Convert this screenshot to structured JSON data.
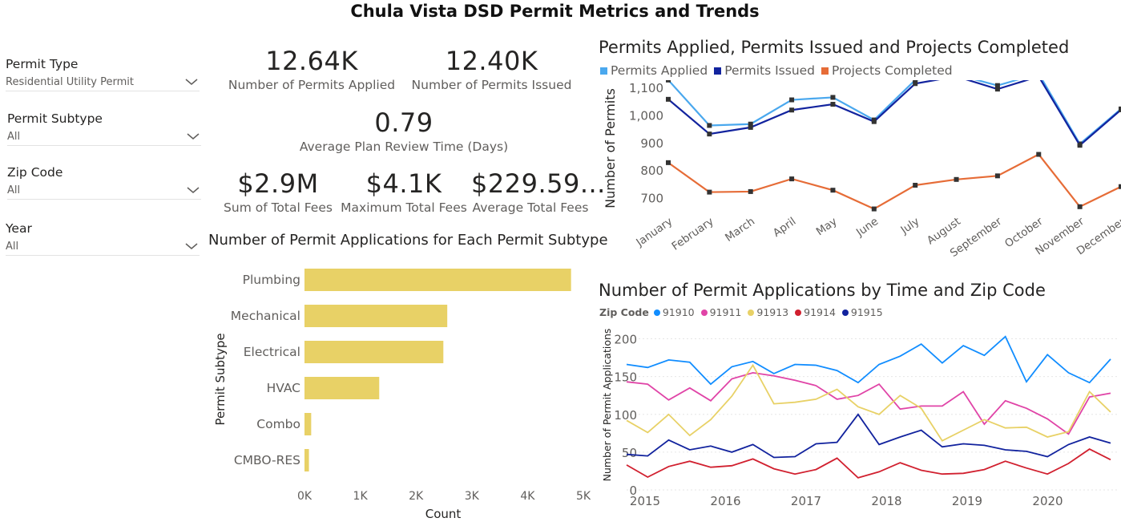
{
  "page": {
    "title": "Chula Vista DSD Permit Metrics and Trends"
  },
  "filters": [
    {
      "label": "Permit Type",
      "value": "Residential Utility Permit"
    },
    {
      "label": "Permit Subtype",
      "value": "All"
    },
    {
      "label": "Zip Code",
      "value": "All"
    },
    {
      "label": "Year",
      "value": "All"
    }
  ],
  "cards": {
    "permits_applied": {
      "value": "12.64K",
      "label": "Number of Permits Applied"
    },
    "permits_issued": {
      "value": "12.40K",
      "label": "Number of Permits Issued"
    },
    "review_time": {
      "value": "0.79",
      "label": "Average Plan Review Time (Days)"
    },
    "sum_fees": {
      "value": "$2.9M",
      "label": "Sum of Total Fees"
    },
    "max_fees": {
      "value": "$4.1K",
      "label": "Maximum Total Fees"
    },
    "avg_fees": {
      "value": "$229.59...",
      "label": "Average Total Fees"
    }
  },
  "colors": {
    "bar": "#E8D166",
    "applied": "#4AA8EE",
    "issued": "#12239E",
    "completed": "#E66C37",
    "z91910": "#118DFF",
    "z91911": "#E044A7",
    "z91913": "#E8D166",
    "z91914": "#D1202F",
    "z91915": "#12239E"
  },
  "chart_data": [
    {
      "type": "bar",
      "orientation": "horizontal",
      "title": "Number of Permit Applications for Each Permit Subtype",
      "xlabel": "Count",
      "ylabel": "Permit Subtype",
      "categories": [
        "Plumbing",
        "Mechanical",
        "Electrical",
        "HVAC",
        "Combo",
        "CMBO-RES"
      ],
      "values": [
        4780,
        2560,
        2490,
        1340,
        120,
        80
      ],
      "xlim": [
        0,
        5000
      ],
      "xticks": [
        "0K",
        "1K",
        "2K",
        "3K",
        "4K",
        "5K"
      ]
    },
    {
      "type": "line",
      "title": "Permits Applied, Permits Issued and Projects Completed",
      "xlabel": "",
      "ylabel": "Number of Permits",
      "categories": [
        "January",
        "February",
        "March",
        "April",
        "May",
        "June",
        "July",
        "August",
        "September",
        "October",
        "November",
        "December"
      ],
      "yticks": [
        "700",
        "800",
        "900",
        "1,000",
        "1,100"
      ],
      "ylim": [
        660,
        1160
      ],
      "series": [
        {
          "name": "Permits Applied",
          "values": [
            1130,
            965,
            970,
            1058,
            1067,
            985,
            1130,
            1150,
            1110,
            1153,
            898,
            1025
          ]
        },
        {
          "name": "Permits Issued",
          "values": [
            1060,
            934,
            958,
            1021,
            1042,
            979,
            1117,
            1143,
            1097,
            1143,
            893,
            1022
          ]
        },
        {
          "name": "Projects Completed",
          "values": [
            830,
            723,
            725,
            771,
            730,
            662,
            748,
            769,
            782,
            860,
            670,
            743
          ]
        }
      ]
    },
    {
      "type": "line",
      "title": "Number of Permit Applications by Time and Zip Code",
      "xlabel": "",
      "ylabel": "Number of Permit Applications",
      "legend_title": "Zip Code",
      "xticks": [
        "2015",
        "2016",
        "2017",
        "2018",
        "2019",
        "2020"
      ],
      "yticks": [
        "0",
        "50",
        "100",
        "150",
        "200"
      ],
      "ylim": [
        0,
        200
      ],
      "x_start": "2015 Q1",
      "x_step": "quarter",
      "series": [
        {
          "name": "91910",
          "values": [
            166,
            162,
            172,
            169,
            140,
            163,
            170,
            154,
            166,
            165,
            158,
            142,
            166,
            177,
            193,
            168,
            191,
            178,
            203,
            143,
            179,
            155,
            142,
            173
          ]
        },
        {
          "name": "91911",
          "values": [
            143,
            140,
            119,
            135,
            118,
            147,
            155,
            151,
            145,
            138,
            120,
            125,
            140,
            107,
            111,
            111,
            130,
            87,
            118,
            108,
            94,
            74,
            123,
            128
          ]
        },
        {
          "name": "91913",
          "values": [
            92,
            76,
            100,
            72,
            93,
            124,
            165,
            114,
            116,
            120,
            133,
            110,
            100,
            125,
            108,
            65,
            79,
            93,
            82,
            83,
            70,
            77,
            130,
            103
          ]
        },
        {
          "name": "91914",
          "values": [
            33,
            17,
            31,
            38,
            30,
            32,
            41,
            28,
            21,
            27,
            42,
            16,
            24,
            36,
            26,
            21,
            22,
            27,
            38,
            29,
            21,
            35,
            54,
            40
          ]
        },
        {
          "name": "91915",
          "values": [
            47,
            45,
            66,
            53,
            58,
            50,
            60,
            43,
            44,
            61,
            63,
            100,
            60,
            70,
            79,
            57,
            61,
            59,
            53,
            51,
            44,
            60,
            70,
            62
          ]
        }
      ]
    }
  ]
}
